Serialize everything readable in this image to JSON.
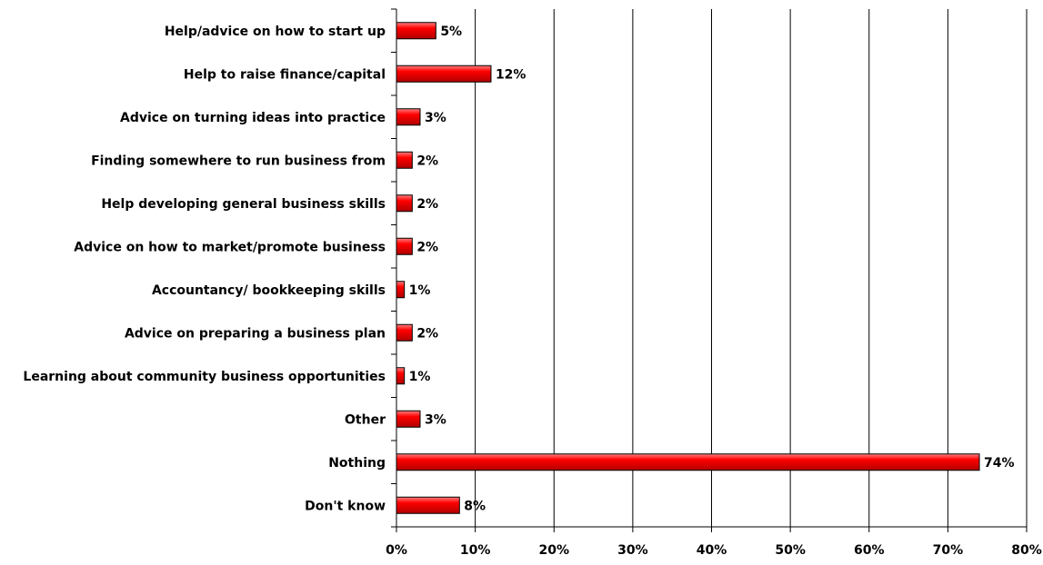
{
  "chart_data": {
    "type": "bar",
    "orientation": "horizontal",
    "categories": [
      "Help/advice on how to start up",
      "Help to raise finance/capital",
      "Advice on turning ideas into practice",
      "Finding somewhere to run business from",
      "Help developing general business skills",
      "Advice on how to market/promote business",
      "Accountancy/ bookkeeping skills",
      "Advice on preparing a business plan",
      "Learning about community business opportunities",
      "Other",
      "Nothing",
      "Don't know"
    ],
    "values": [
      5,
      12,
      3,
      2,
      2,
      2,
      1,
      2,
      1,
      3,
      74,
      8
    ],
    "value_labels": [
      "5%",
      "12%",
      "3%",
      "2%",
      "2%",
      "2%",
      "1%",
      "2%",
      "1%",
      "3%",
      "74%",
      "8%"
    ],
    "xlim": [
      0,
      80
    ],
    "xticks": [
      0,
      10,
      20,
      30,
      40,
      50,
      60,
      70,
      80
    ],
    "xtick_labels": [
      "0%",
      "10%",
      "20%",
      "30%",
      "40%",
      "50%",
      "60%",
      "70%",
      "80%"
    ],
    "title": "",
    "xlabel": "",
    "ylabel": "",
    "grid": "vertical",
    "legend": "none",
    "bar_color": "#ff0000",
    "bar_edge_color": "#000000"
  }
}
